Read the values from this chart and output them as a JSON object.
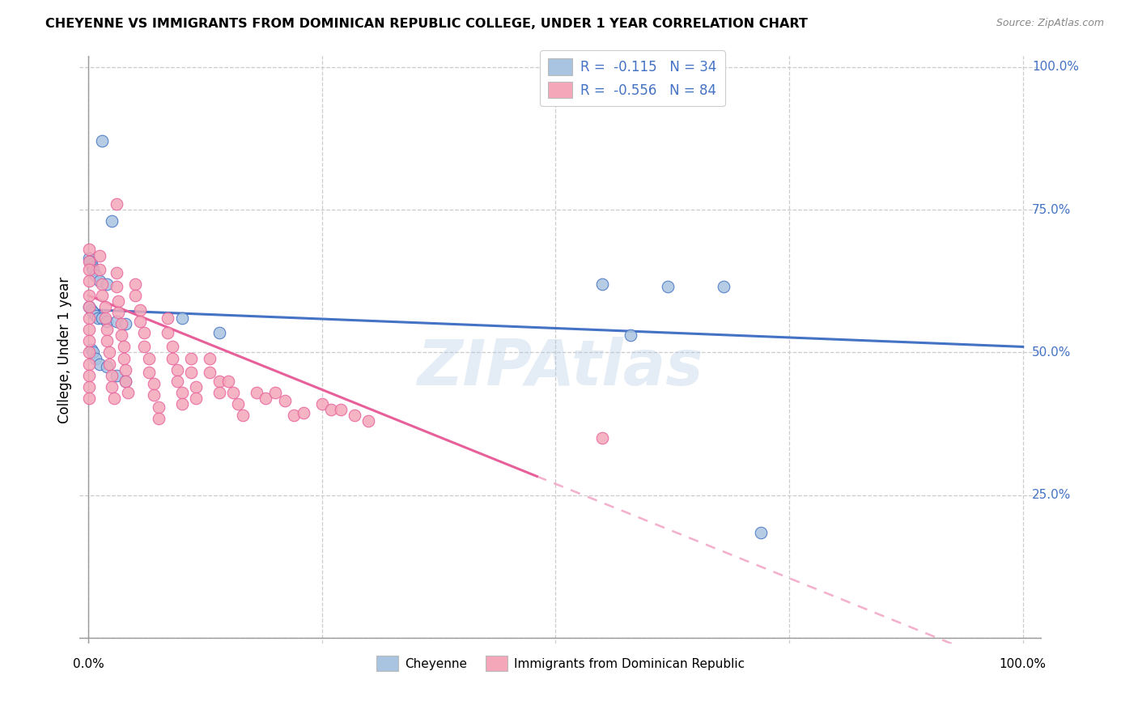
{
  "title": "CHEYENNE VS IMMIGRANTS FROM DOMINICAN REPUBLIC COLLEGE, UNDER 1 YEAR CORRELATION CHART",
  "source": "Source: ZipAtlas.com",
  "ylabel": "College, Under 1 year",
  "y_ticks_right": [
    "100.0%",
    "75.0%",
    "50.0%",
    "25.0%"
  ],
  "legend_r1": "R =  -0.115   N = 34",
  "legend_r2": "R =  -0.556   N = 84",
  "cheyenne_color": "#a8c4e0",
  "cheyenne_line_color": "#4472c4",
  "immigrant_color": "#f4a7b9",
  "immigrant_line_color": "#e8609a",
  "watermark": "ZIPAtlas",
  "cheyenne_R": -0.115,
  "cheyenne_N": 34,
  "immigrant_R": -0.556,
  "immigrant_N": 84
}
